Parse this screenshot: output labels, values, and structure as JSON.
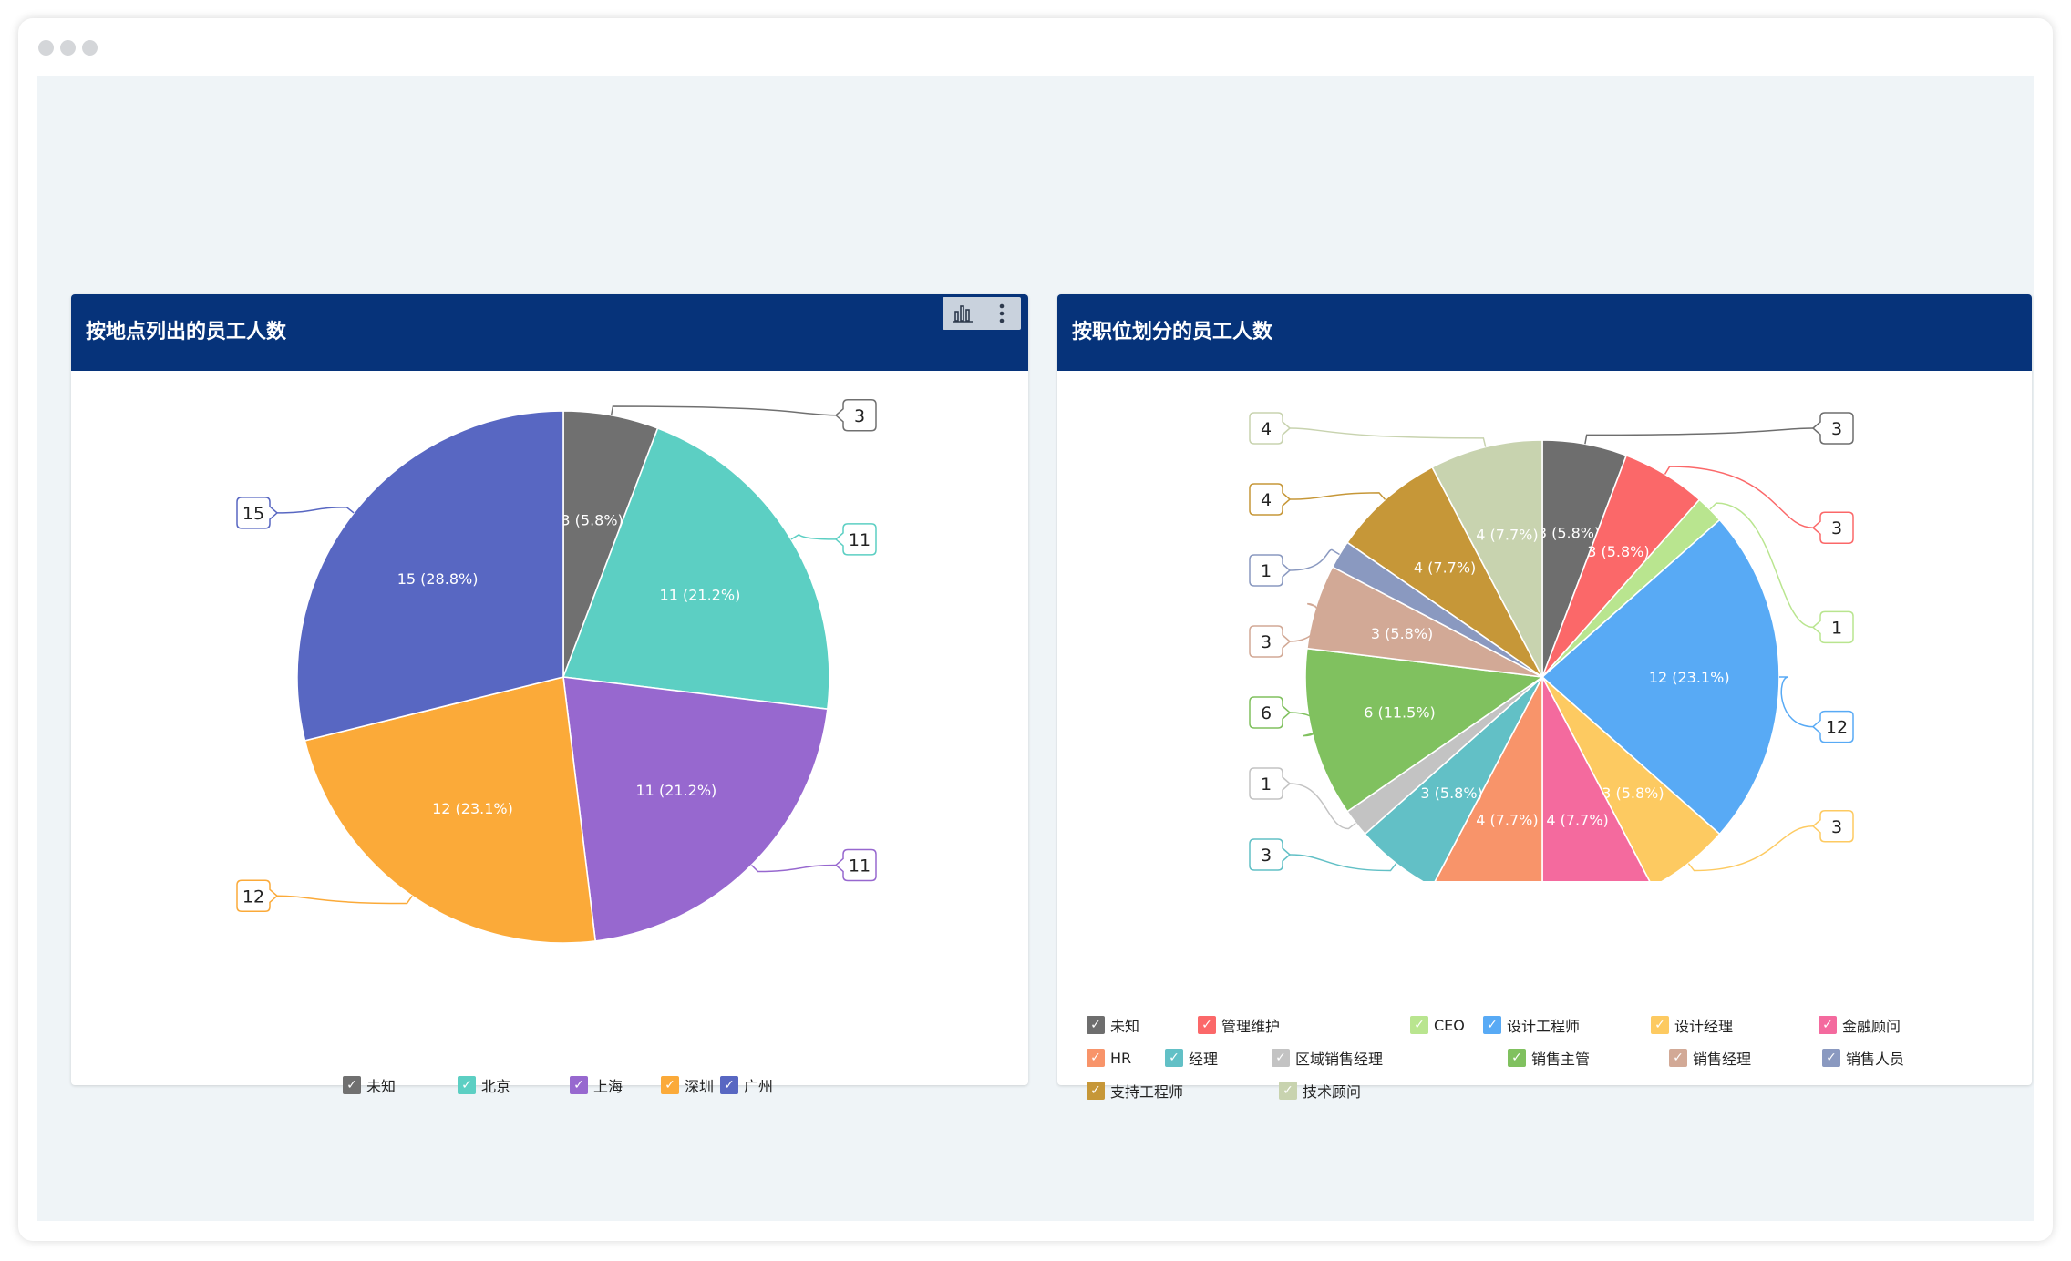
{
  "colors": {
    "header": "#06337a",
    "stage": "#eff4f7"
  },
  "icons": [
    "bar-chart-icon",
    "more-vertical-icon",
    "checkmark-icon"
  ],
  "left_card": {
    "title": "按地点列出的员工人数"
  },
  "right_card": {
    "title": "按职位划分的员工人数"
  },
  "chart_data": [
    {
      "type": "pie",
      "title": "按地点列出的员工人数",
      "start_angle": 0,
      "direction": "clockwise",
      "categories": [
        "未知",
        "北京",
        "上海",
        "深圳",
        "广州"
      ],
      "values": [
        3,
        11,
        11,
        12,
        15
      ],
      "labels": [
        "3 (5.8%)",
        "11 (21.2%)",
        "11 (21.2%)",
        "12 (23.1%)",
        "15 (28.8%)"
      ],
      "colors": [
        "#707070",
        "#5ccfc3",
        "#9768cf",
        "#fbaa39",
        "#5867c2"
      ],
      "legend": "bottom"
    },
    {
      "type": "pie",
      "title": "按职位划分的员工人数",
      "start_angle": 0,
      "direction": "clockwise",
      "categories": [
        "未知",
        "管理维护",
        "CEO",
        "设计工程师",
        "设计经理",
        "金融顾问",
        "HR",
        "经理",
        "区域销售经理",
        "销售主管",
        "销售经理",
        "销售人员",
        "支持工程师",
        "技术顾问"
      ],
      "values": [
        3,
        3,
        1,
        12,
        3,
        4,
        4,
        3,
        1,
        6,
        3,
        1,
        4,
        4
      ],
      "labels": [
        "3 (5.8%)",
        "3 (5.8%)",
        "",
        "12 (23.1%)",
        "3 (5.8%)",
        "4 (7.7%)",
        "4 (7.7%)",
        "3 (5.8%)",
        "",
        "6 (11.5%)",
        "3 (5.8%)",
        "",
        "4 (7.7%)",
        "4 (7.7%)"
      ],
      "colors": [
        "#6e6e6e",
        "#fb6869",
        "#b9e58f",
        "#58aaf5",
        "#fdca61",
        "#f46a9e",
        "#f8946a",
        "#62c0c6",
        "#c3c3c3",
        "#80c15f",
        "#d2a996",
        "#8a99c0",
        "#c69738",
        "#c8d3af"
      ],
      "legend": "bottom"
    }
  ]
}
